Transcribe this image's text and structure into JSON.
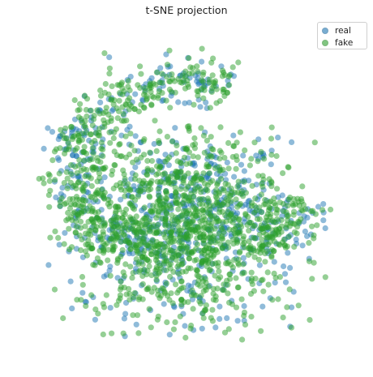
{
  "chart_data": {
    "type": "scatter",
    "title": "t-SNE projection",
    "xlabel": "",
    "ylabel": "",
    "axes_visible": false,
    "grid": false,
    "legend_position": "top-right",
    "series": [
      {
        "name": "real",
        "color": "#1f77b4",
        "marker": "circle",
        "alpha": 0.5
      },
      {
        "name": "fake",
        "color": "#2ca02c",
        "marker": "circle",
        "alpha": 0.5
      }
    ],
    "point_distribution": {
      "description_of_values": "dense cloud of many thousand overlapping points; real and fake overlap heavily",
      "clusters": [
        {
          "center": [
            -5,
            -5
          ],
          "spread": [
            42,
            36
          ],
          "density": "very high"
        },
        {
          "center": [
            -38,
            10
          ],
          "spread": [
            22,
            55
          ],
          "density": "medium"
        },
        {
          "center": [
            15,
            48
          ],
          "spread": [
            45,
            20
          ],
          "density": "medium"
        },
        {
          "center": [
            48,
            25
          ],
          "spread": [
            18,
            20
          ],
          "density": "medium"
        }
      ]
    }
  },
  "legend": {
    "real_label": "real",
    "fake_label": "fake"
  }
}
